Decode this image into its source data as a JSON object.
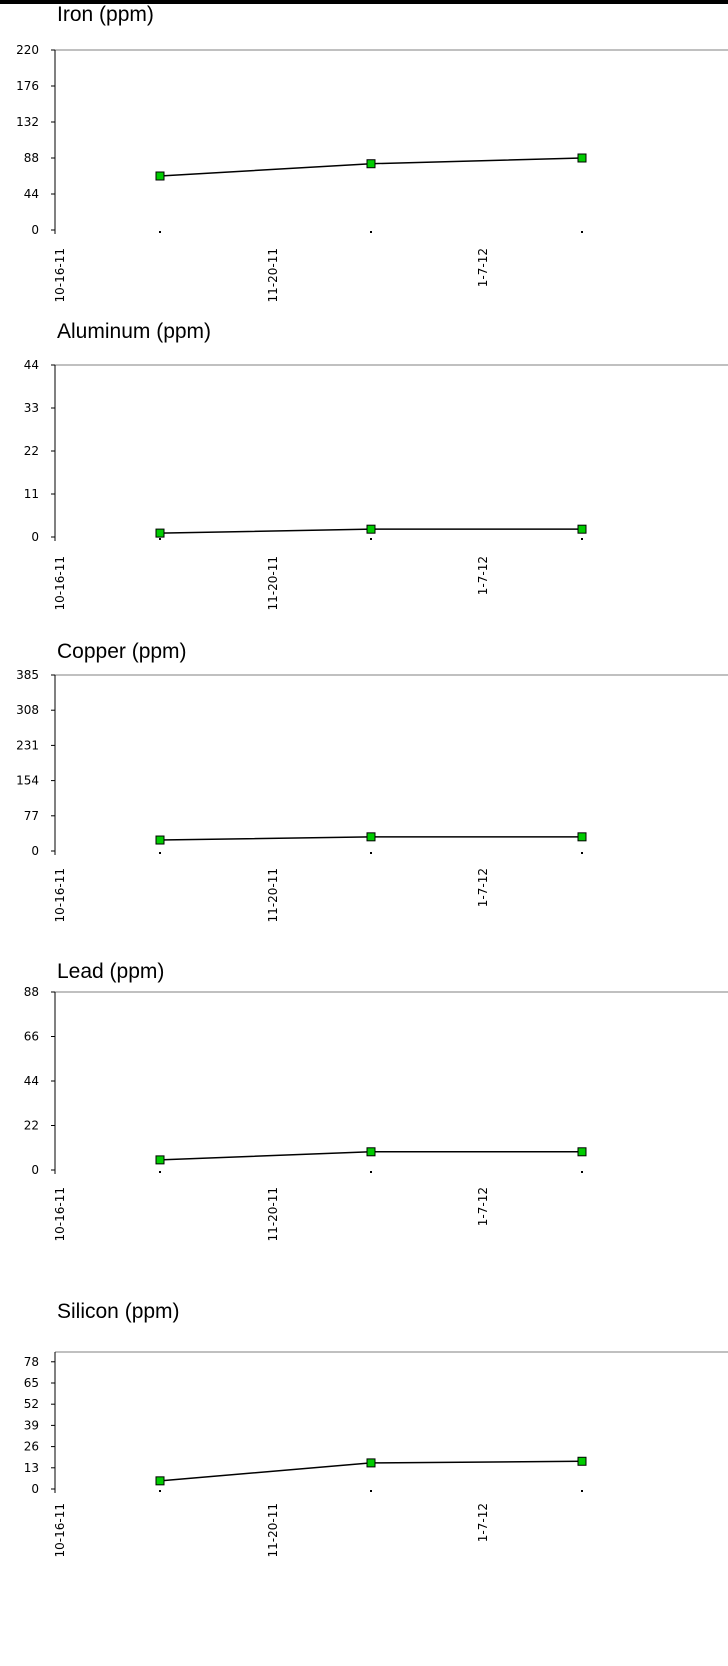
{
  "chart_data": [
    {
      "type": "line",
      "title": "Iron (ppm)",
      "categories": [
        "10-16-11",
        "11-20-11",
        "1-7-12"
      ],
      "x_ticks": [
        "10-16-11",
        "11-20-11",
        "1-7-12"
      ],
      "y_ticks": [
        0,
        44,
        88,
        132,
        176,
        220
      ],
      "ylim": [
        0,
        220
      ],
      "series": [
        {
          "values": [
            66,
            81,
            88
          ]
        }
      ],
      "grid": false
    },
    {
      "type": "line",
      "title": "Aluminum (ppm)",
      "categories": [
        "10-16-11",
        "11-20-11",
        "1-7-12"
      ],
      "x_ticks": [
        "10-16-11",
        "11-20-11",
        "1-7-12"
      ],
      "y_ticks": [
        0,
        11,
        22,
        33,
        44
      ],
      "ylim": [
        0,
        44
      ],
      "series": [
        {
          "values": [
            1,
            2,
            2
          ]
        }
      ],
      "grid": false
    },
    {
      "type": "line",
      "title": "Copper (ppm)",
      "categories": [
        "10-16-11",
        "11-20-11",
        "1-7-12"
      ],
      "x_ticks": [
        "10-16-11",
        "11-20-11",
        "1-7-12"
      ],
      "y_ticks": [
        0,
        77,
        154,
        231,
        308,
        385
      ],
      "ylim": [
        0,
        385
      ],
      "series": [
        {
          "values": [
            24,
            31,
            31
          ]
        }
      ],
      "grid": false
    },
    {
      "type": "line",
      "title": "Lead (ppm)",
      "categories": [
        "10-16-11",
        "11-20-11",
        "1-7-12"
      ],
      "x_ticks": [
        "10-16-11",
        "11-20-11",
        "1-7-12"
      ],
      "y_ticks": [
        0,
        22,
        44,
        66,
        88
      ],
      "ylim": [
        0,
        88
      ],
      "series": [
        {
          "values": [
            5,
            9,
            9
          ]
        }
      ],
      "grid": false
    },
    {
      "type": "line",
      "title": "Silicon (ppm)",
      "categories": [
        "10-16-11",
        "11-20-11",
        "1-7-12"
      ],
      "x_ticks": [
        "10-16-11",
        "11-20-11",
        "1-7-12"
      ],
      "y_ticks": [
        0,
        13,
        26,
        39,
        52,
        65,
        78
      ],
      "ylim": [
        0,
        84
      ],
      "series": [
        {
          "values": [
            5,
            16,
            17
          ]
        }
      ],
      "grid": false
    }
  ],
  "colors": {
    "marker_fill": "#00cc00",
    "line": "#000000",
    "frame": "#808080"
  }
}
